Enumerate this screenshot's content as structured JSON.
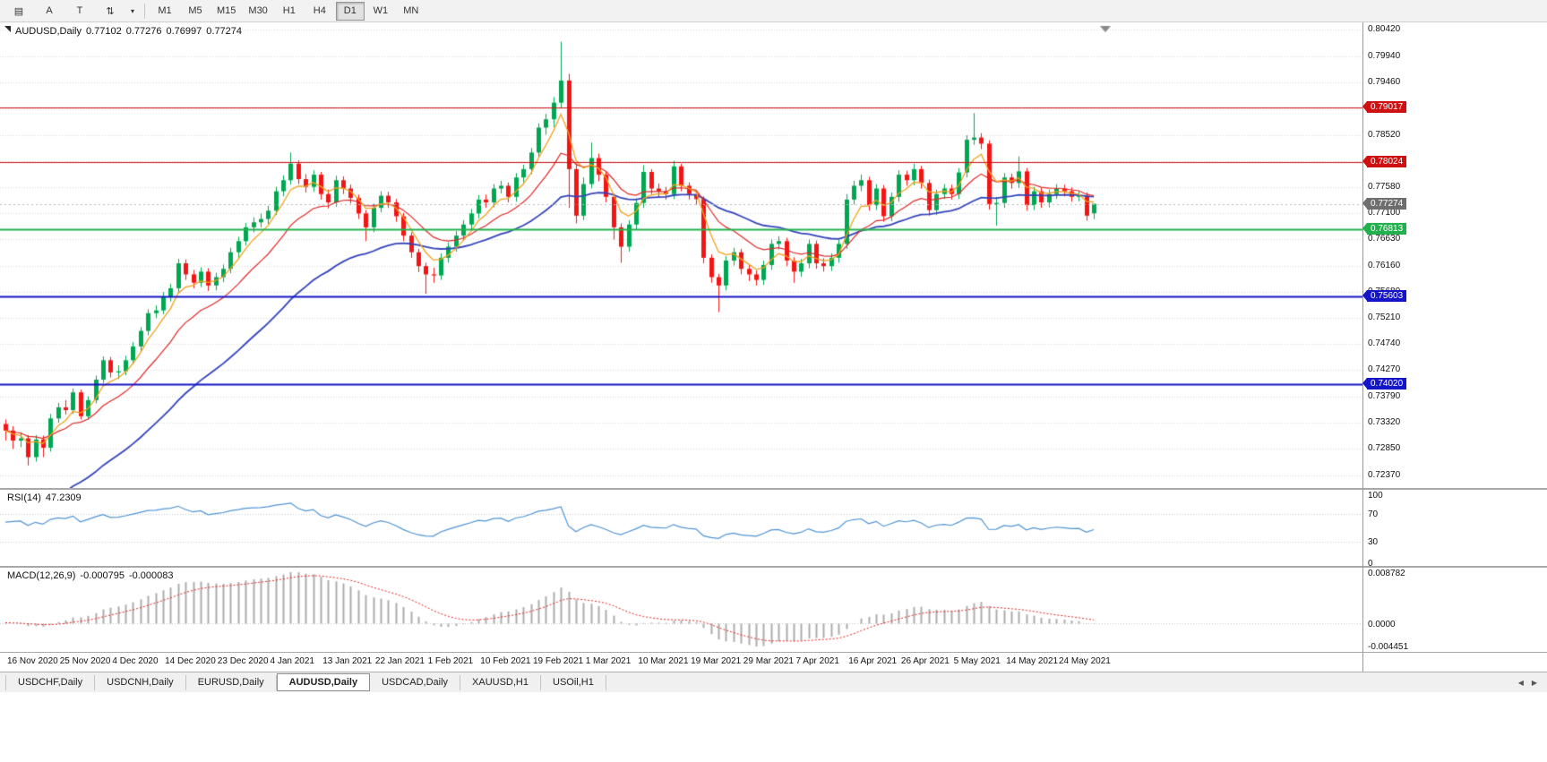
{
  "toolbar": {
    "tools": [
      {
        "name": "chart-window-icon",
        "glyph": "▤"
      },
      {
        "name": "text-a-tool",
        "glyph": "A"
      },
      {
        "name": "text-t-tool",
        "glyph": "T"
      },
      {
        "name": "scale-tool",
        "glyph": "⇅"
      },
      {
        "name": "tools-dropdown",
        "glyph": "▾"
      }
    ],
    "timeframes": [
      "M1",
      "M5",
      "M15",
      "M30",
      "H1",
      "H4",
      "D1",
      "W1",
      "MN"
    ],
    "active_timeframe": "D1"
  },
  "chart_header": {
    "symbol": "AUDUSD,Daily",
    "open": "0.77102",
    "high": "0.77276",
    "low": "0.76997",
    "close": "0.77274"
  },
  "price_axis": {
    "labels": [
      "0.80420",
      "0.79940",
      "0.79460",
      "0.78990",
      "0.78520",
      "0.78050",
      "0.77580",
      "0.77100",
      "0.76630",
      "0.76160",
      "0.75680",
      "0.75210",
      "0.74740",
      "0.74270",
      "0.73790",
      "0.73320",
      "0.72850",
      "0.72370"
    ],
    "current_price": "0.77274",
    "current_badge_color": "#6e6e6e"
  },
  "chart_data": {
    "type": "candlestick",
    "title": "AUDUSD,Daily",
    "price_range": {
      "min": 0.7237,
      "max": 0.8042
    },
    "up_color": "#00a651",
    "down_color": "#f21515",
    "x_labels": [
      "16 Nov 2020",
      "25 Nov 2020",
      "4 Dec 2020",
      "14 Dec 2020",
      "23 Dec 2020",
      "4 Jan 2021",
      "13 Jan 2021",
      "22 Jan 2021",
      "1 Feb 2021",
      "10 Feb 2021",
      "19 Feb 2021",
      "1 Mar 2021",
      "10 Mar 2021",
      "19 Mar 2021",
      "29 Mar 2021",
      "7 Apr 2021",
      "16 Apr 2021",
      "26 Apr 2021",
      "5 May 2021",
      "14 May 2021",
      "24 May 2021"
    ],
    "moving_averages": [
      {
        "type": "ema",
        "period": 34,
        "seed": 0.713,
        "color": "#3344bb",
        "width": 1.8
      },
      {
        "type": "ema",
        "period": 13,
        "color": "#e02626",
        "width": 1.2
      },
      {
        "type": "ema",
        "period": 5,
        "color": "#f0a11e",
        "width": 1.3
      }
    ],
    "hlines": [
      {
        "price": 0.79017,
        "label": "0.79017",
        "color": "#d01010",
        "width": 1
      },
      {
        "price": 0.78024,
        "label": "0.78024",
        "color": "#d01010",
        "width": 1
      },
      {
        "price": 0.76813,
        "label": "0.76813",
        "color": "#22b14c",
        "width": 2
      },
      {
        "price": 0.75603,
        "label": "0.75603",
        "color": "#1414c8",
        "width": 2
      },
      {
        "price": 0.7402,
        "label": "0.74020",
        "color": "#1414c8",
        "width": 2
      }
    ],
    "candles": [
      [
        0.733,
        0.7338,
        0.73,
        0.7318
      ],
      [
        0.7318,
        0.7326,
        0.7285,
        0.73
      ],
      [
        0.73,
        0.7315,
        0.7288,
        0.7304
      ],
      [
        0.7304,
        0.731,
        0.7255,
        0.727
      ],
      [
        0.727,
        0.731,
        0.7262,
        0.7302
      ],
      [
        0.7302,
        0.7309,
        0.727,
        0.7287
      ],
      [
        0.7287,
        0.7348,
        0.728,
        0.734
      ],
      [
        0.734,
        0.7368,
        0.7332,
        0.736
      ],
      [
        0.736,
        0.7373,
        0.7347,
        0.7355
      ],
      [
        0.7355,
        0.7394,
        0.7348,
        0.7387
      ],
      [
        0.7387,
        0.7392,
        0.7338,
        0.7344
      ],
      [
        0.7344,
        0.738,
        0.7338,
        0.7373
      ],
      [
        0.7373,
        0.7417,
        0.7367,
        0.741
      ],
      [
        0.741,
        0.7452,
        0.7404,
        0.7445
      ],
      [
        0.7445,
        0.7451,
        0.7414,
        0.7423
      ],
      [
        0.7423,
        0.7436,
        0.7411,
        0.7425
      ],
      [
        0.7425,
        0.7453,
        0.7418,
        0.7445
      ],
      [
        0.7445,
        0.7478,
        0.7438,
        0.747
      ],
      [
        0.747,
        0.7505,
        0.7462,
        0.7498
      ],
      [
        0.7498,
        0.7537,
        0.749,
        0.753
      ],
      [
        0.753,
        0.7544,
        0.7521,
        0.7535
      ],
      [
        0.7535,
        0.7568,
        0.7528,
        0.756
      ],
      [
        0.756,
        0.7583,
        0.7551,
        0.7575
      ],
      [
        0.7575,
        0.7628,
        0.7568,
        0.762
      ],
      [
        0.762,
        0.7627,
        0.759,
        0.76
      ],
      [
        0.76,
        0.7608,
        0.7575,
        0.7585
      ],
      [
        0.7585,
        0.7613,
        0.7577,
        0.7605
      ],
      [
        0.7605,
        0.7611,
        0.757,
        0.758
      ],
      [
        0.758,
        0.7603,
        0.7571,
        0.7595
      ],
      [
        0.7595,
        0.7618,
        0.7586,
        0.761
      ],
      [
        0.761,
        0.7648,
        0.7602,
        0.764
      ],
      [
        0.764,
        0.7668,
        0.7631,
        0.766
      ],
      [
        0.766,
        0.7693,
        0.7652,
        0.7685
      ],
      [
        0.7685,
        0.7703,
        0.7676,
        0.7694
      ],
      [
        0.7694,
        0.771,
        0.7685,
        0.77
      ],
      [
        0.77,
        0.7724,
        0.7691,
        0.7715
      ],
      [
        0.7715,
        0.7758,
        0.7707,
        0.775
      ],
      [
        0.775,
        0.7779,
        0.7741,
        0.777
      ],
      [
        0.777,
        0.782,
        0.7762,
        0.78
      ],
      [
        0.78,
        0.7806,
        0.7763,
        0.7772
      ],
      [
        0.7772,
        0.7781,
        0.7748,
        0.7758
      ],
      [
        0.7758,
        0.7788,
        0.7749,
        0.778
      ],
      [
        0.778,
        0.7785,
        0.7735,
        0.7745
      ],
      [
        0.7745,
        0.7753,
        0.7719,
        0.773
      ],
      [
        0.773,
        0.7778,
        0.7722,
        0.777
      ],
      [
        0.777,
        0.7777,
        0.7745,
        0.7755
      ],
      [
        0.7755,
        0.7762,
        0.7728,
        0.7738
      ],
      [
        0.7738,
        0.7744,
        0.77,
        0.771
      ],
      [
        0.771,
        0.7716,
        0.766,
        0.7685
      ],
      [
        0.7685,
        0.7728,
        0.7676,
        0.772
      ],
      [
        0.772,
        0.775,
        0.7712,
        0.7742
      ],
      [
        0.7742,
        0.7749,
        0.772,
        0.773
      ],
      [
        0.773,
        0.7736,
        0.7695,
        0.7705
      ],
      [
        0.7705,
        0.7711,
        0.766,
        0.767
      ],
      [
        0.767,
        0.7676,
        0.763,
        0.764
      ],
      [
        0.764,
        0.7646,
        0.7604,
        0.7615
      ],
      [
        0.7615,
        0.7621,
        0.7565,
        0.76
      ],
      [
        0.76,
        0.7612,
        0.7585,
        0.7598
      ],
      [
        0.7598,
        0.7638,
        0.759,
        0.763
      ],
      [
        0.763,
        0.7658,
        0.7621,
        0.765
      ],
      [
        0.765,
        0.7678,
        0.7641,
        0.767
      ],
      [
        0.767,
        0.7698,
        0.7661,
        0.769
      ],
      [
        0.769,
        0.7718,
        0.7681,
        0.771
      ],
      [
        0.771,
        0.7743,
        0.7701,
        0.7735
      ],
      [
        0.7735,
        0.7744,
        0.772,
        0.773
      ],
      [
        0.773,
        0.7763,
        0.7721,
        0.7755
      ],
      [
        0.7755,
        0.7769,
        0.7746,
        0.776
      ],
      [
        0.776,
        0.7766,
        0.773,
        0.774
      ],
      [
        0.774,
        0.7783,
        0.7731,
        0.7775
      ],
      [
        0.7775,
        0.7798,
        0.7766,
        0.779
      ],
      [
        0.779,
        0.7828,
        0.7781,
        0.782
      ],
      [
        0.782,
        0.7873,
        0.7811,
        0.7865
      ],
      [
        0.7865,
        0.789,
        0.7852,
        0.788
      ],
      [
        0.788,
        0.792,
        0.7866,
        0.791
      ],
      [
        0.791,
        0.802,
        0.79,
        0.795
      ],
      [
        0.795,
        0.7962,
        0.772,
        0.779
      ],
      [
        0.779,
        0.78,
        0.7692,
        0.7706
      ],
      [
        0.7706,
        0.7775,
        0.7698,
        0.7763
      ],
      [
        0.7763,
        0.7838,
        0.7755,
        0.781
      ],
      [
        0.781,
        0.7818,
        0.7768,
        0.778
      ],
      [
        0.778,
        0.7786,
        0.773,
        0.774
      ],
      [
        0.774,
        0.7746,
        0.7663,
        0.7685
      ],
      [
        0.7685,
        0.7692,
        0.7621,
        0.765
      ],
      [
        0.765,
        0.7698,
        0.7641,
        0.769
      ],
      [
        0.769,
        0.7737,
        0.7681,
        0.7729
      ],
      [
        0.7729,
        0.7797,
        0.772,
        0.7785
      ],
      [
        0.7785,
        0.779,
        0.7745,
        0.7755
      ],
      [
        0.7755,
        0.7764,
        0.774,
        0.775
      ],
      [
        0.775,
        0.7758,
        0.7735,
        0.7745
      ],
      [
        0.7745,
        0.7805,
        0.7736,
        0.7795
      ],
      [
        0.7795,
        0.78,
        0.775,
        0.776
      ],
      [
        0.776,
        0.7766,
        0.7735,
        0.7745
      ],
      [
        0.7745,
        0.7752,
        0.7726,
        0.7736
      ],
      [
        0.7736,
        0.7741,
        0.762,
        0.763
      ],
      [
        0.763,
        0.7636,
        0.7585,
        0.7595
      ],
      [
        0.7595,
        0.7601,
        0.7532,
        0.758
      ],
      [
        0.758,
        0.7633,
        0.7571,
        0.7625
      ],
      [
        0.7625,
        0.7648,
        0.7616,
        0.764
      ],
      [
        0.764,
        0.7646,
        0.76,
        0.761
      ],
      [
        0.761,
        0.7617,
        0.7588,
        0.76
      ],
      [
        0.76,
        0.7607,
        0.758,
        0.759
      ],
      [
        0.759,
        0.7625,
        0.7581,
        0.7617
      ],
      [
        0.7617,
        0.7663,
        0.7608,
        0.7655
      ],
      [
        0.7655,
        0.7669,
        0.7645,
        0.766
      ],
      [
        0.766,
        0.7666,
        0.7615,
        0.7625
      ],
      [
        0.7625,
        0.7631,
        0.7585,
        0.7605
      ],
      [
        0.7605,
        0.7628,
        0.7596,
        0.762
      ],
      [
        0.762,
        0.7663,
        0.7611,
        0.7655
      ],
      [
        0.7655,
        0.7661,
        0.761,
        0.762
      ],
      [
        0.762,
        0.7629,
        0.7605,
        0.7615
      ],
      [
        0.7615,
        0.7638,
        0.7606,
        0.763
      ],
      [
        0.763,
        0.7663,
        0.7621,
        0.7655
      ],
      [
        0.7655,
        0.7745,
        0.7646,
        0.7735
      ],
      [
        0.7735,
        0.7769,
        0.7726,
        0.776
      ],
      [
        0.776,
        0.778,
        0.775,
        0.777
      ],
      [
        0.777,
        0.7776,
        0.7715,
        0.7725
      ],
      [
        0.7725,
        0.7763,
        0.7716,
        0.7755
      ],
      [
        0.7755,
        0.7761,
        0.7695,
        0.7705
      ],
      [
        0.7705,
        0.7748,
        0.7696,
        0.774
      ],
      [
        0.774,
        0.7788,
        0.7731,
        0.778
      ],
      [
        0.778,
        0.7787,
        0.776,
        0.777
      ],
      [
        0.777,
        0.78,
        0.7761,
        0.779
      ],
      [
        0.779,
        0.7796,
        0.7755,
        0.7765
      ],
      [
        0.7765,
        0.7771,
        0.7706,
        0.7716
      ],
      [
        0.7716,
        0.7753,
        0.7707,
        0.7745
      ],
      [
        0.7745,
        0.7763,
        0.7736,
        0.7755
      ],
      [
        0.7755,
        0.7762,
        0.7735,
        0.7745
      ],
      [
        0.7745,
        0.7792,
        0.7736,
        0.7784
      ],
      [
        0.7784,
        0.7851,
        0.7775,
        0.7843
      ],
      [
        0.7843,
        0.7891,
        0.7834,
        0.7847
      ],
      [
        0.7847,
        0.7855,
        0.7826,
        0.7836
      ],
      [
        0.7836,
        0.7842,
        0.7717,
        0.7727
      ],
      [
        0.7727,
        0.774,
        0.7688,
        0.7729
      ],
      [
        0.7729,
        0.7783,
        0.772,
        0.7775
      ],
      [
        0.7775,
        0.7782,
        0.7755,
        0.7765
      ],
      [
        0.7765,
        0.7813,
        0.7756,
        0.7786
      ],
      [
        0.7786,
        0.7792,
        0.7715,
        0.7725
      ],
      [
        0.7725,
        0.7758,
        0.7716,
        0.775
      ],
      [
        0.775,
        0.7756,
        0.772,
        0.773
      ],
      [
        0.773,
        0.7753,
        0.7721,
        0.7745
      ],
      [
        0.7745,
        0.7763,
        0.7736,
        0.7755
      ],
      [
        0.7755,
        0.7762,
        0.7741,
        0.775
      ],
      [
        0.775,
        0.7757,
        0.7731,
        0.774
      ],
      [
        0.774,
        0.775,
        0.7732,
        0.7742
      ],
      [
        0.7742,
        0.7748,
        0.7697,
        0.7706
      ],
      [
        0.77102,
        0.77276,
        0.76997,
        0.77274
      ]
    ],
    "rsi": {
      "title": "RSI(14)",
      "value": "47.2309",
      "period": 14,
      "color": "#4f93d4",
      "axis_labels": [
        "100",
        "70",
        "30",
        "0"
      ],
      "level_lines": [
        70,
        30
      ]
    },
    "macd": {
      "title": "MACD(12,26,9)",
      "main_value": "-0.000795",
      "signal_value": "-0.000083",
      "fast": 12,
      "slow": 26,
      "signal": 9,
      "bar_color": "#ababab",
      "signal_color": "#e02020",
      "axis_top": "0.008782",
      "axis_zero": "0.0000",
      "axis_bottom": "-0.004451"
    }
  },
  "tabs": {
    "items": [
      "USDCHF,Daily",
      "USDCNH,Daily",
      "EURUSD,Daily",
      "AUDUSD,Daily",
      "USDCAD,Daily",
      "XAUUSD,H1",
      "USOil,H1"
    ],
    "active": "AUDUSD,Daily",
    "scroll_left_glyph": "◀",
    "scroll_right_glyph": "▶"
  }
}
